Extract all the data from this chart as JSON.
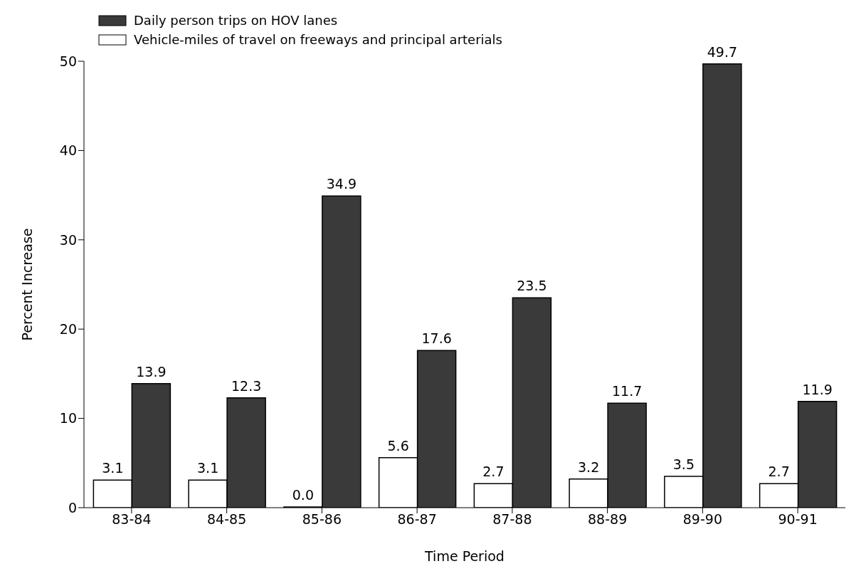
{
  "chart_data": {
    "type": "bar",
    "xlabel": "Time Period",
    "ylabel": "Percent Increase",
    "categories": [
      "83-84",
      "84-85",
      "85-86",
      "86-87",
      "87-88",
      "88-89",
      "89-90",
      "90-91"
    ],
    "series": [
      {
        "name": "Vehicle-miles of travel on freeways and principal arterials",
        "color": "#ffffff",
        "values": [
          3.1,
          3.1,
          0.0,
          5.6,
          2.7,
          3.2,
          3.5,
          2.7
        ],
        "value_labels": [
          "3.1",
          "3.1",
          "0.0",
          "5.6",
          "2.7",
          "3.2",
          "3.5",
          "2.7"
        ]
      },
      {
        "name": "Daily person trips on HOV lanes",
        "color": "#3a3a3a",
        "values": [
          13.9,
          12.3,
          34.9,
          17.6,
          23.5,
          11.7,
          49.7,
          11.9
        ],
        "value_labels": [
          "13.9",
          "12.3",
          "34.9",
          "17.6",
          "23.5",
          "11.7",
          "49.7",
          "11.9"
        ]
      }
    ],
    "ylim": [
      0,
      50
    ],
    "yticks": [
      0,
      10,
      20,
      30,
      40,
      50
    ],
    "legend": "top left",
    "grid": false
  }
}
